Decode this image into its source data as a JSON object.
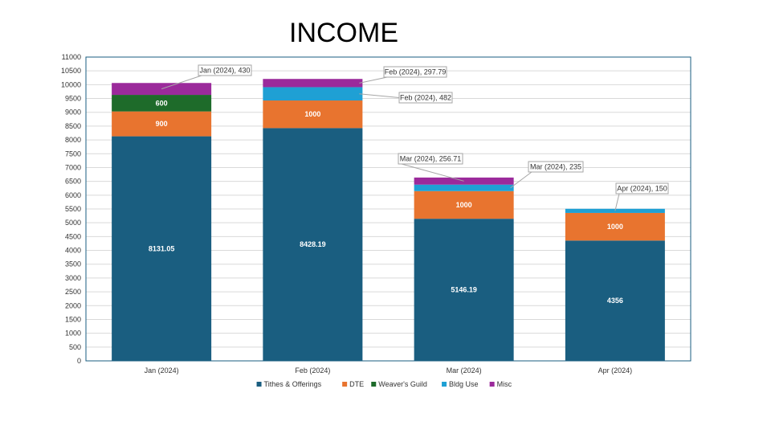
{
  "chart_data": {
    "type": "bar",
    "stacked": true,
    "title": "INCOME",
    "categories": [
      "Jan (2024)",
      "Feb (2024)",
      "Mar (2024)",
      "Apr (2024)"
    ],
    "series": [
      {
        "name": "Tithes & Offerings",
        "color": "#1a5e80",
        "values": [
          8131.05,
          8428.19,
          5146.19,
          4356
        ]
      },
      {
        "name": "DTE",
        "color": "#e8742f",
        "values": [
          900,
          1000,
          1000,
          1000
        ]
      },
      {
        "name": "Weaver's Guild",
        "color": "#1e6b2a",
        "values": [
          600,
          0,
          0,
          0
        ]
      },
      {
        "name": "Bldg Use",
        "color": "#1fa0d4",
        "values": [
          0,
          482,
          235,
          150
        ]
      },
      {
        "name": "Misc",
        "color": "#9b2a9b",
        "values": [
          430,
          297.79,
          256.71,
          0
        ]
      }
    ],
    "data_labels": [
      {
        "text": "8131.05",
        "style": "inside"
      },
      {
        "text": "8428.19",
        "style": "inside"
      },
      {
        "text": "5146.19",
        "style": "inside"
      },
      {
        "text": "4356",
        "style": "inside"
      },
      {
        "text": "900",
        "style": "inside"
      },
      {
        "text": "1000",
        "style": "inside"
      },
      {
        "text": "1000",
        "style": "inside"
      },
      {
        "text": "1000",
        "style": "inside"
      },
      {
        "text": "600",
        "style": "inside"
      },
      {
        "text": "Jan (2024), 430",
        "style": "callout"
      },
      {
        "text": "Feb (2024), 297.79",
        "style": "callout"
      },
      {
        "text": "Feb (2024), 482",
        "style": "callout"
      },
      {
        "text": "Mar (2024), 256.71",
        "style": "callout"
      },
      {
        "text": "Mar (2024), 235",
        "style": "callout"
      },
      {
        "text": "Apr (2024), 150",
        "style": "callout"
      }
    ],
    "ylim": [
      0,
      11000
    ],
    "ytick_step": 500,
    "grid": true,
    "legend_position": "bottom"
  }
}
